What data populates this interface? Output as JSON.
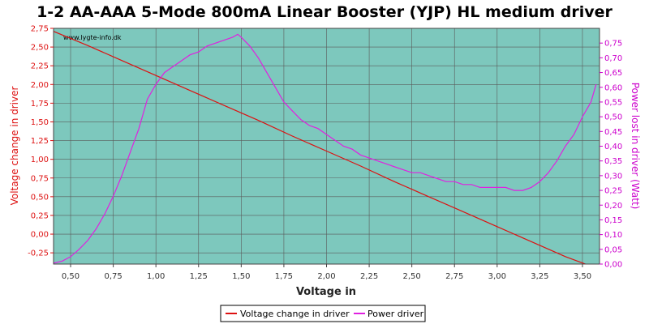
{
  "chart_data": {
    "type": "line",
    "title": "1-2 AA-AAA 5-Mode 800mA Linear Booster (YJP) HL medium driver",
    "watermark": "www.lygte-info.dk",
    "xlabel": "Voltage in",
    "ylabel_left": "Voltage change in driver",
    "ylabel_right": "Power lost in driver (Watt)",
    "xlim": [
      0.4,
      3.6
    ],
    "ylim_left": [
      -0.4,
      2.75
    ],
    "ylim_right": [
      0.0,
      0.8
    ],
    "x_ticks": [
      "0,50",
      "0,75",
      "1,00",
      "1,25",
      "1,50",
      "1,75",
      "2,00",
      "2,25",
      "2,50",
      "2,75",
      "3,00",
      "3,25",
      "3,50"
    ],
    "x_tick_values": [
      0.5,
      0.75,
      1.0,
      1.25,
      1.5,
      1.75,
      2.0,
      2.25,
      2.5,
      2.75,
      3.0,
      3.25,
      3.5
    ],
    "y_left_ticks": [
      "2,75",
      "2,50",
      "2,25",
      "2,00",
      "1,75",
      "1,50",
      "1,25",
      "1,00",
      "0,75",
      "0,50",
      "0,25",
      "0,00",
      "-0,25"
    ],
    "y_left_tick_values": [
      2.75,
      2.5,
      2.25,
      2.0,
      1.75,
      1.5,
      1.25,
      1.0,
      0.75,
      0.5,
      0.25,
      0.0,
      -0.25
    ],
    "y_right_ticks": [
      "0,75",
      "0,70",
      "0,65",
      "0,60",
      "0,55",
      "0,50",
      "0,45",
      "0,40",
      "0,35",
      "0,30",
      "0,25",
      "0,20",
      "0,15",
      "0,10",
      "0,05",
      "0,00"
    ],
    "y_right_tick_values": [
      0.75,
      0.7,
      0.65,
      0.6,
      0.55,
      0.5,
      0.45,
      0.4,
      0.35,
      0.3,
      0.25,
      0.2,
      0.15,
      0.1,
      0.05,
      0.0
    ],
    "grid": true,
    "legend_position": "bottom-center",
    "colors": {
      "plot_background": "#7dc8bd",
      "grid": "#5a5a5a",
      "voltage_series": "#dd1111",
      "power_series": "#e020e0",
      "left_axis": "#dd1111",
      "right_axis": "#cc00cc"
    },
    "series": [
      {
        "name": "Voltage change in driver",
        "axis": "left",
        "x": [
          0.4,
          0.6,
          0.8,
          1.0,
          1.2,
          1.4,
          1.6,
          1.8,
          2.0,
          2.2,
          2.4,
          2.6,
          2.8,
          3.0,
          3.2,
          3.4,
          3.6
        ],
        "y": [
          2.71,
          2.52,
          2.32,
          2.12,
          1.92,
          1.72,
          1.52,
          1.31,
          1.11,
          0.91,
          0.7,
          0.5,
          0.3,
          0.1,
          -0.1,
          -0.3,
          -0.47
        ]
      },
      {
        "name": "Power driver",
        "axis": "right",
        "x": [
          0.4,
          0.45,
          0.5,
          0.55,
          0.6,
          0.65,
          0.7,
          0.75,
          0.8,
          0.85,
          0.9,
          0.95,
          1.0,
          1.05,
          1.1,
          1.15,
          1.2,
          1.25,
          1.3,
          1.35,
          1.4,
          1.45,
          1.48,
          1.5,
          1.55,
          1.6,
          1.65,
          1.7,
          1.75,
          1.8,
          1.85,
          1.9,
          1.95,
          2.0,
          2.05,
          2.1,
          2.15,
          2.2,
          2.25,
          2.3,
          2.35,
          2.4,
          2.45,
          2.5,
          2.55,
          2.6,
          2.65,
          2.7,
          2.75,
          2.8,
          2.85,
          2.9,
          2.95,
          3.0,
          3.05,
          3.1,
          3.15,
          3.2,
          3.25,
          3.3,
          3.35,
          3.4,
          3.45,
          3.5,
          3.55,
          3.58
        ],
        "y": [
          0.003,
          0.01,
          0.025,
          0.05,
          0.08,
          0.12,
          0.17,
          0.23,
          0.3,
          0.38,
          0.46,
          0.56,
          0.61,
          0.65,
          0.67,
          0.69,
          0.71,
          0.72,
          0.74,
          0.75,
          0.76,
          0.77,
          0.78,
          0.77,
          0.74,
          0.7,
          0.65,
          0.6,
          0.55,
          0.52,
          0.49,
          0.47,
          0.46,
          0.44,
          0.42,
          0.4,
          0.39,
          0.37,
          0.36,
          0.35,
          0.34,
          0.33,
          0.32,
          0.31,
          0.31,
          0.3,
          0.29,
          0.28,
          0.28,
          0.27,
          0.27,
          0.26,
          0.26,
          0.26,
          0.26,
          0.25,
          0.25,
          0.26,
          0.28,
          0.31,
          0.35,
          0.4,
          0.44,
          0.5,
          0.55,
          0.61
        ]
      }
    ]
  }
}
